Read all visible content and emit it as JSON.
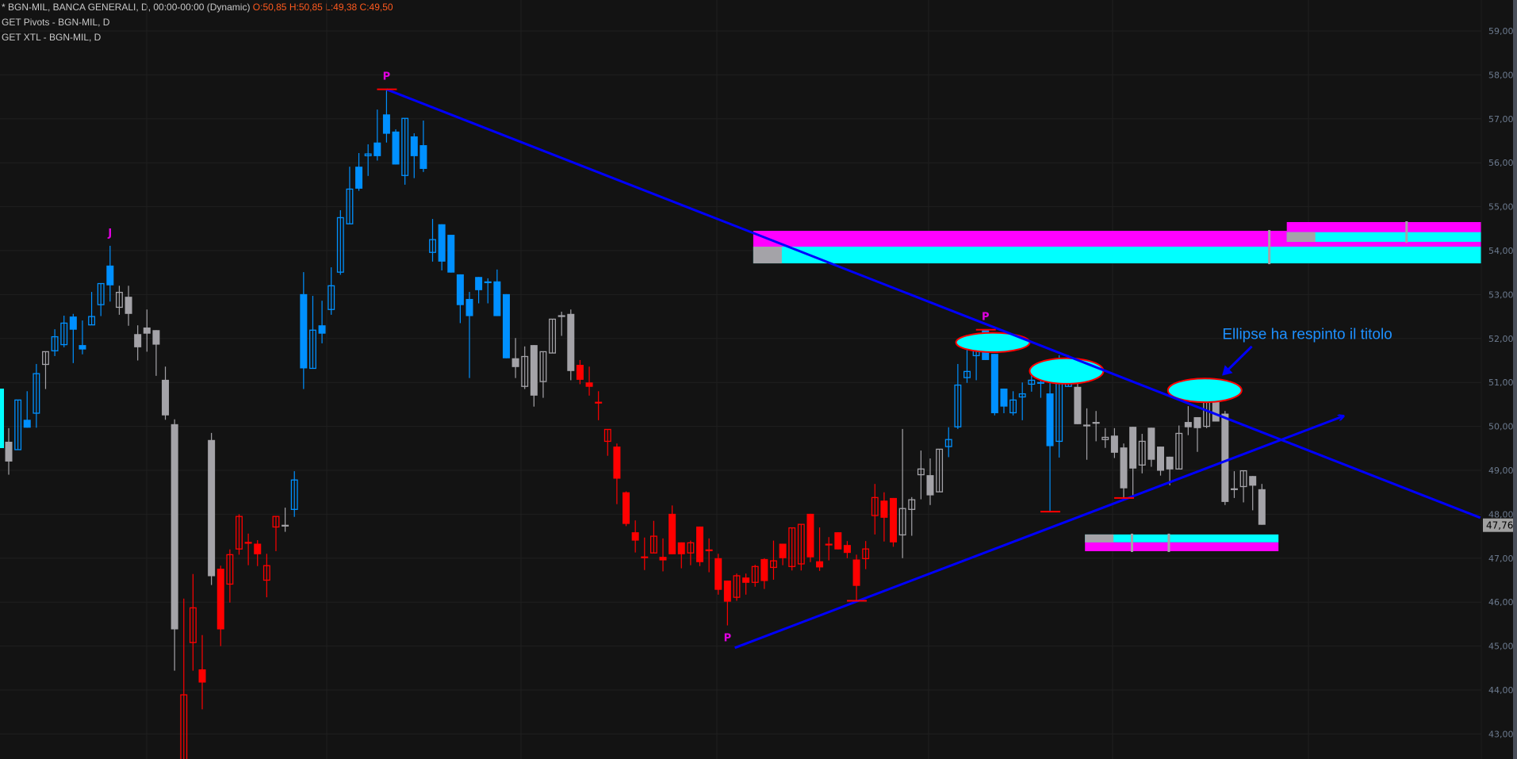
{
  "header": {
    "title": "* BGN-MIL, BANCA GENERALI, D, 00:00-00:00 (Dynamic)",
    "ohlc": "O:50,85 H:50,85 L:49,38 C:49,50",
    "indicator_1": "GET Pivots - BGN-MIL, D",
    "indicator_2": "GET XTL - BGN-MIL, D"
  },
  "colors": {
    "background": "#131313",
    "bull_trend": "#0090ff",
    "neutral": "#a4a3a8",
    "bear_trend": "#ff0000",
    "trendline": "#0000ff",
    "pivot_label": "#e000e0",
    "zone_magenta": "#ff00ff",
    "zone_cyan": "#00ffff",
    "annotation": "#1e90ff",
    "axis_text": "#6c7a8e"
  },
  "chart_data": {
    "type": "candlestick",
    "ylim": [
      43,
      59
    ],
    "y_ticks": [
      "59,00",
      "58,00",
      "57,00",
      "56,00",
      "55,00",
      "54,00",
      "53,00",
      "52,00",
      "51,00",
      "50,00",
      "49,00",
      "48,00",
      "47,00",
      "46,00",
      "45,00",
      "44,00",
      "43,00"
    ],
    "y_tick_values": [
      59,
      58,
      57,
      56,
      55,
      54,
      53,
      52,
      51,
      50,
      49,
      48,
      47,
      46,
      45,
      44,
      43
    ],
    "grid": true,
    "last_price": 47.76,
    "last_price_label": "47,76",
    "candle_fields": [
      "open",
      "high",
      "low",
      "close",
      "trend_color"
    ],
    "candles": [
      [
        49.65,
        49.96,
        48.9,
        49.2,
        "g"
      ],
      [
        49.47,
        50.6,
        49.47,
        50.6,
        "b"
      ],
      [
        50.15,
        50.8,
        49.97,
        49.97,
        "b"
      ],
      [
        50.3,
        51.42,
        49.97,
        51.2,
        "b"
      ],
      [
        51.41,
        51.7,
        50.85,
        51.7,
        "g"
      ],
      [
        51.72,
        52.21,
        51.6,
        52.04,
        "b"
      ],
      [
        51.86,
        52.52,
        51.8,
        52.35,
        "b"
      ],
      [
        52.5,
        52.56,
        51.44,
        52.2,
        "b"
      ],
      [
        51.85,
        52.41,
        51.64,
        51.75,
        "b"
      ],
      [
        52.31,
        53.06,
        52.31,
        52.5,
        "b"
      ],
      [
        52.77,
        53.25,
        52.51,
        53.25,
        "b"
      ],
      [
        53.66,
        54.11,
        52.84,
        53.21,
        "b"
      ],
      [
        52.71,
        53.2,
        52.54,
        53.05,
        "g"
      ],
      [
        52.95,
        53.2,
        52.29,
        52.56,
        "g"
      ],
      [
        52.1,
        52.3,
        51.5,
        51.8,
        "g"
      ],
      [
        52.25,
        52.66,
        51.7,
        52.11,
        "g"
      ],
      [
        52.19,
        52.19,
        51.15,
        51.86,
        "g"
      ],
      [
        51.06,
        51.36,
        50.15,
        50.25,
        "g"
      ],
      [
        50.05,
        50.16,
        44.44,
        45.38,
        "g"
      ],
      [
        42.2,
        46.08,
        41.8,
        43.89,
        "r"
      ],
      [
        45.08,
        46.64,
        44.44,
        45.87,
        "r"
      ],
      [
        44.47,
        45.25,
        43.56,
        44.17,
        "r"
      ],
      [
        49.69,
        49.85,
        46.39,
        46.59,
        "g"
      ],
      [
        46.76,
        46.83,
        45.0,
        45.38,
        "r"
      ],
      [
        46.41,
        47.2,
        45.99,
        47.08,
        "r"
      ],
      [
        47.21,
        48.0,
        47.08,
        47.95,
        "r"
      ],
      [
        47.35,
        47.56,
        46.84,
        47.35,
        "r"
      ],
      [
        47.33,
        47.41,
        46.82,
        47.09,
        "r"
      ],
      [
        46.5,
        47.1,
        46.11,
        46.83,
        "r"
      ],
      [
        47.71,
        47.95,
        47.16,
        47.95,
        "r"
      ],
      [
        47.74,
        48.15,
        47.6,
        47.74,
        "g"
      ],
      [
        48.11,
        48.98,
        47.94,
        48.78,
        "b"
      ],
      [
        53.01,
        53.51,
        50.85,
        51.32,
        "b"
      ],
      [
        51.32,
        52.97,
        51.32,
        52.19,
        "b"
      ],
      [
        52.3,
        52.86,
        51.89,
        52.11,
        "b"
      ],
      [
        52.66,
        53.62,
        52.54,
        53.2,
        "b"
      ],
      [
        53.51,
        54.92,
        53.45,
        54.75,
        "b"
      ],
      [
        54.61,
        55.91,
        54.61,
        55.4,
        "b"
      ],
      [
        55.91,
        56.22,
        55.36,
        55.41,
        "b"
      ],
      [
        56.16,
        56.42,
        55.7,
        56.2,
        "b"
      ],
      [
        56.46,
        57.21,
        56.05,
        56.15,
        "b"
      ],
      [
        57.1,
        57.67,
        56.46,
        56.66,
        "b"
      ],
      [
        56.71,
        56.76,
        55.96,
        55.96,
        "b"
      ],
      [
        55.71,
        57.01,
        55.5,
        57.01,
        "b"
      ],
      [
        56.6,
        56.67,
        55.65,
        56.15,
        "b"
      ],
      [
        56.4,
        56.96,
        55.79,
        55.86,
        "b"
      ],
      [
        53.96,
        54.72,
        53.75,
        54.25,
        "b"
      ],
      [
        54.6,
        54.6,
        53.55,
        53.75,
        "b"
      ],
      [
        54.36,
        54.36,
        53.5,
        53.5,
        "b"
      ],
      [
        53.46,
        53.46,
        52.35,
        52.76,
        "b"
      ],
      [
        52.9,
        53.06,
        51.1,
        52.51,
        "b"
      ],
      [
        53.4,
        53.4,
        52.8,
        53.1,
        "b"
      ],
      [
        53.28,
        53.37,
        52.8,
        53.28,
        "b"
      ],
      [
        53.3,
        53.57,
        52.51,
        52.51,
        "b"
      ],
      [
        53.01,
        53.01,
        51.55,
        51.55,
        "b"
      ],
      [
        51.55,
        52.01,
        51.1,
        51.35,
        "g"
      ],
      [
        50.91,
        51.82,
        50.85,
        51.59,
        "g"
      ],
      [
        51.85,
        51.85,
        50.45,
        50.7,
        "g"
      ],
      [
        51.02,
        51.7,
        50.65,
        51.7,
        "g"
      ],
      [
        51.67,
        52.44,
        51.67,
        52.44,
        "g"
      ],
      [
        52.51,
        52.61,
        52.06,
        52.51,
        "g"
      ],
      [
        52.56,
        52.66,
        51.05,
        51.26,
        "g"
      ],
      [
        51.4,
        51.51,
        50.96,
        51.06,
        "r"
      ],
      [
        51.0,
        51.36,
        50.7,
        50.9,
        "r"
      ],
      [
        50.54,
        50.8,
        50.14,
        50.54,
        "r"
      ],
      [
        49.66,
        49.93,
        49.33,
        49.93,
        "r"
      ],
      [
        49.54,
        49.61,
        48.23,
        48.81,
        "r"
      ],
      [
        48.5,
        48.52,
        47.73,
        47.78,
        "r"
      ],
      [
        47.59,
        47.86,
        47.13,
        47.4,
        "r"
      ],
      [
        47.02,
        47.47,
        46.73,
        47.02,
        "r"
      ],
      [
        47.12,
        47.85,
        47.12,
        47.5,
        "r"
      ],
      [
        47.03,
        47.45,
        46.7,
        46.95,
        "r"
      ],
      [
        48.01,
        48.2,
        47.09,
        47.09,
        "r"
      ],
      [
        47.36,
        47.36,
        46.77,
        47.09,
        "r"
      ],
      [
        47.12,
        47.4,
        46.84,
        47.35,
        "r"
      ],
      [
        47.72,
        47.72,
        46.82,
        46.91,
        "r"
      ],
      [
        47.18,
        47.45,
        46.68,
        47.18,
        "r"
      ],
      [
        47.0,
        47.1,
        46.17,
        46.28,
        "r"
      ],
      [
        46.49,
        46.49,
        45.47,
        46.01,
        "r"
      ],
      [
        46.11,
        46.65,
        46.03,
        46.6,
        "r"
      ],
      [
        46.56,
        46.65,
        46.17,
        46.44,
        "r"
      ],
      [
        46.45,
        46.85,
        46.35,
        46.81,
        "r"
      ],
      [
        46.98,
        47.0,
        46.3,
        46.48,
        "r"
      ],
      [
        46.79,
        47.4,
        46.51,
        46.94,
        "r"
      ],
      [
        47.33,
        47.33,
        46.84,
        47.0,
        "r"
      ],
      [
        46.81,
        47.69,
        46.72,
        47.69,
        "r"
      ],
      [
        46.87,
        47.77,
        46.72,
        47.77,
        "r"
      ],
      [
        48.01,
        48.01,
        46.91,
        47.02,
        "r"
      ],
      [
        46.93,
        47.7,
        46.71,
        46.79,
        "r"
      ],
      [
        47.31,
        47.48,
        46.95,
        47.31,
        "r"
      ],
      [
        47.59,
        47.59,
        47.2,
        47.2,
        "r"
      ],
      [
        47.3,
        47.39,
        47.0,
        47.12,
        "r"
      ],
      [
        46.97,
        47.08,
        46.03,
        46.37,
        "r"
      ],
      [
        46.99,
        47.39,
        46.75,
        47.21,
        "r"
      ],
      [
        47.97,
        48.69,
        47.54,
        48.38,
        "r"
      ],
      [
        48.31,
        48.5,
        47.38,
        47.92,
        "r"
      ],
      [
        48.37,
        48.37,
        47.26,
        47.36,
        "r"
      ],
      [
        47.53,
        49.94,
        47.0,
        48.13,
        "g"
      ],
      [
        48.11,
        48.39,
        47.51,
        48.33,
        "g"
      ],
      [
        48.9,
        49.45,
        48.34,
        49.03,
        "g"
      ],
      [
        48.89,
        49.27,
        48.21,
        48.43,
        "g"
      ],
      [
        48.51,
        49.48,
        48.51,
        49.48,
        "g"
      ],
      [
        49.54,
        49.98,
        49.3,
        49.7,
        "b"
      ],
      [
        49.99,
        51.42,
        49.94,
        50.94,
        "b"
      ],
      [
        51.11,
        52.01,
        50.99,
        51.25,
        "b"
      ],
      [
        51.61,
        51.87,
        51.05,
        51.79,
        "b"
      ],
      [
        52.2,
        52.2,
        51.51,
        51.51,
        "b"
      ],
      [
        51.65,
        51.65,
        50.25,
        50.3,
        "b"
      ],
      [
        50.86,
        50.86,
        50.3,
        50.45,
        "b"
      ],
      [
        50.31,
        50.8,
        50.25,
        50.6,
        "b"
      ],
      [
        50.67,
        51.0,
        50.14,
        50.74,
        "b"
      ],
      [
        50.96,
        51.3,
        50.79,
        51.05,
        "b"
      ],
      [
        50.99,
        51.17,
        50.65,
        50.99,
        "b"
      ],
      [
        50.75,
        51.17,
        48.06,
        49.55,
        "b"
      ],
      [
        49.66,
        51.62,
        49.29,
        51.3,
        "b"
      ],
      [
        50.91,
        51.62,
        50.91,
        51.3,
        "b"
      ],
      [
        50.9,
        50.98,
        50.05,
        50.05,
        "g"
      ],
      [
        50.02,
        50.41,
        49.24,
        50.02,
        "g"
      ],
      [
        50.08,
        50.35,
        49.66,
        50.08,
        "g"
      ],
      [
        49.7,
        49.96,
        49.51,
        49.75,
        "g"
      ],
      [
        49.79,
        49.96,
        49.28,
        49.4,
        "g"
      ],
      [
        49.52,
        49.61,
        48.37,
        48.59,
        "g"
      ],
      [
        49.99,
        49.99,
        48.42,
        49.04,
        "g"
      ],
      [
        49.12,
        49.83,
        48.93,
        49.66,
        "g"
      ],
      [
        49.97,
        49.97,
        49.08,
        49.24,
        "g"
      ],
      [
        49.54,
        49.54,
        48.88,
        48.99,
        "g"
      ],
      [
        49.31,
        49.31,
        48.66,
        49.02,
        "g"
      ],
      [
        49.03,
        50.02,
        49.03,
        49.84,
        "g"
      ],
      [
        50.1,
        50.46,
        49.8,
        49.98,
        "g"
      ],
      [
        50.21,
        50.21,
        49.42,
        49.96,
        "g"
      ],
      [
        50.0,
        50.86,
        49.96,
        50.86,
        "g"
      ],
      [
        50.9,
        50.97,
        50.11,
        50.11,
        "g"
      ],
      [
        50.29,
        50.35,
        48.21,
        48.28,
        "g"
      ],
      [
        48.57,
        48.98,
        48.37,
        48.57,
        "g"
      ],
      [
        48.63,
        48.99,
        48.27,
        48.99,
        "g"
      ],
      [
        48.87,
        48.87,
        48.09,
        48.65,
        "g"
      ],
      [
        48.57,
        48.69,
        47.76,
        47.76,
        "g"
      ]
    ],
    "pivot_labels": [
      {
        "text": "J",
        "bar": 11,
        "position": "above"
      },
      {
        "text": "P",
        "bar": 41,
        "position": "above"
      },
      {
        "text": "P",
        "bar": 78,
        "position": "below"
      },
      {
        "text": "P",
        "bar": 106,
        "position": "above"
      }
    ],
    "pivot_marks": [
      {
        "bar": 41,
        "price": 57.67
      },
      {
        "bar": 92,
        "price": 46.03
      },
      {
        "bar": 106,
        "price": 52.2
      },
      {
        "bar": 113,
        "price": 48.06
      },
      {
        "bar": 121,
        "price": 48.37
      }
    ],
    "trendlines": [
      {
        "from": [
          41,
          57.67
        ],
        "to": [
          159.7,
          47.92
        ],
        "arrow": false
      },
      {
        "from": [
          78.8,
          44.96
        ],
        "to": [
          144.8,
          50.23
        ],
        "arrow": true
      }
    ],
    "ellipses": [
      {
        "center": [
          106.8,
          51.91
        ],
        "half_width_bars": 4.0,
        "half_height_price": 0.22
      },
      {
        "center": [
          114.8,
          51.26
        ],
        "half_width_bars": 4.0,
        "half_height_price": 0.29
      },
      {
        "center": [
          129.8,
          50.82
        ],
        "half_width_bars": 4.0,
        "half_height_price": 0.27
      }
    ],
    "zones": [
      {
        "from_bar": 80.8,
        "to_bar": 160,
        "bands": [
          {
            "color": "magenta",
            "top": 54.45,
            "bottom": 54.09
          },
          {
            "color": "cyan",
            "top": 54.09,
            "bottom": 53.71
          }
        ],
        "marker_top": 54.09,
        "marker_bottom": 53.71,
        "ticks": [
          136.8
        ]
      },
      {
        "from_bar": 138.7,
        "to_bar": 160,
        "bands": [
          {
            "color": "magenta",
            "top": 54.65,
            "bottom": 54.42
          },
          {
            "color": "cyan",
            "top": 54.42,
            "bottom": 54.2
          }
        ],
        "marker_top": 54.42,
        "marker_bottom": 54.2,
        "ticks": [
          151.7
        ]
      },
      {
        "from_bar": 116.8,
        "to_bar": 137.8,
        "bands": [
          {
            "color": "cyan",
            "top": 47.54,
            "bottom": 47.36
          },
          {
            "color": "magenta",
            "top": 47.36,
            "bottom": 47.16
          }
        ],
        "marker_top": 47.54,
        "marker_bottom": 47.36,
        "ticks": [
          121.9,
          125.9
        ]
      }
    ],
    "annotation": {
      "text": "Ellipse ha respinto il titolo",
      "anchor": [
        131.7,
        51.99
      ],
      "arrow_from": [
        134.9,
        51.82
      ],
      "arrow_to": [
        131.8,
        51.18
      ]
    }
  }
}
